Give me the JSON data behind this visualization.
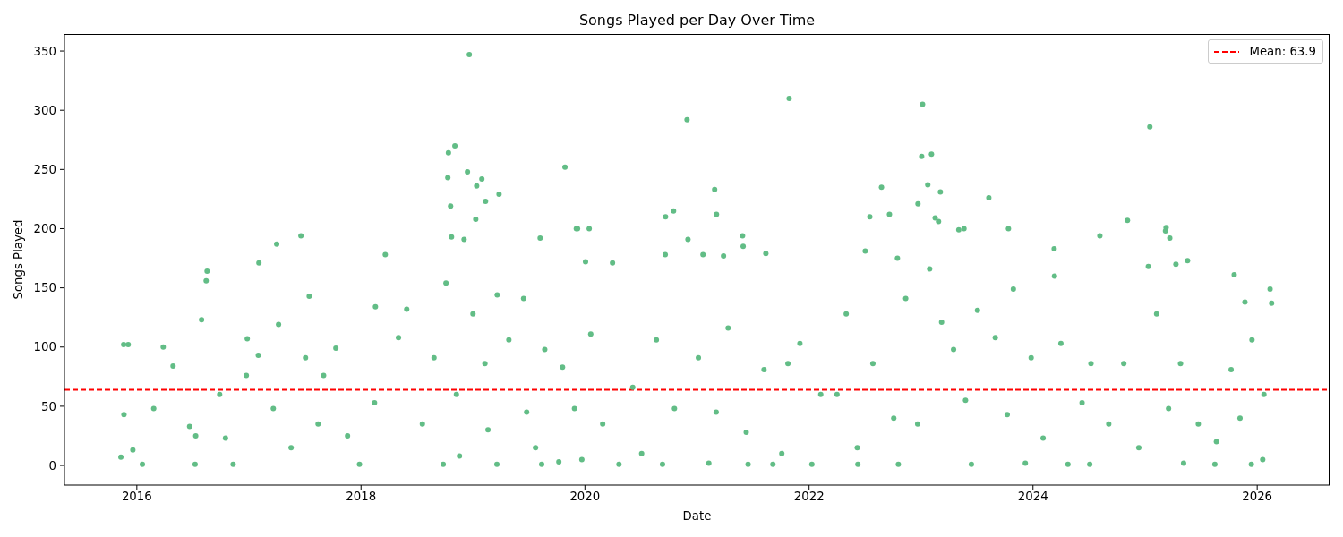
{
  "chart_data": {
    "type": "scatter",
    "title": "Songs Played per Day Over Time",
    "xlabel": "Date",
    "ylabel": "Songs Played",
    "x": [
      "2015-11-10",
      "2015-11-19",
      "2015-11-20",
      "2015-12-04",
      "2015-12-19",
      "2016-01-19",
      "2016-02-25",
      "2016-03-27",
      "2016-04-28",
      "2016-06-21",
      "2016-07-09",
      "2016-07-11",
      "2016-07-30",
      "2016-08-14",
      "2016-08-17",
      "2016-09-27",
      "2016-10-16",
      "2016-11-10",
      "2016-12-23",
      "2016-12-26",
      "2017-01-31",
      "2017-02-02",
      "2017-03-21",
      "2017-04-01",
      "2017-04-07",
      "2017-05-18",
      "2017-06-19",
      "2017-07-04",
      "2017-07-16",
      "2017-08-14",
      "2017-09-01",
      "2017-10-11",
      "2017-11-18",
      "2017-12-27",
      "2018-02-14",
      "2018-02-17",
      "2018-03-21",
      "2018-05-03",
      "2018-05-30",
      "2018-07-20",
      "2018-08-27",
      "2018-09-26",
      "2018-10-05",
      "2018-10-11",
      "2018-10-13",
      "2018-10-20",
      "2018-10-23",
      "2018-11-03",
      "2018-11-08",
      "2018-11-18",
      "2018-12-03",
      "2018-12-14",
      "2018-12-20",
      "2019-01-01",
      "2019-01-10",
      "2019-01-13",
      "2019-01-30",
      "2019-02-09",
      "2019-02-11",
      "2019-02-19",
      "2019-03-20",
      "2019-03-21",
      "2019-03-27",
      "2019-04-28",
      "2019-06-15",
      "2019-06-25",
      "2019-07-24",
      "2019-08-08",
      "2019-08-13",
      "2019-08-23",
      "2019-10-08",
      "2019-10-20",
      "2019-10-28",
      "2019-11-28",
      "2019-12-04",
      "2019-12-08",
      "2019-12-22",
      "2020-01-03",
      "2020-01-15",
      "2020-01-20",
      "2020-02-28",
      "2020-03-31",
      "2020-04-21",
      "2020-06-05",
      "2020-07-04",
      "2020-08-21",
      "2020-09-10",
      "2020-09-19",
      "2020-09-20",
      "2020-10-16",
      "2020-10-19",
      "2020-11-29",
      "2020-12-02",
      "2021-01-05",
      "2021-01-20",
      "2021-02-08",
      "2021-02-27",
      "2021-03-04",
      "2021-03-05",
      "2021-03-28",
      "2021-04-12",
      "2021-05-29",
      "2021-05-31",
      "2021-06-10",
      "2021-06-16",
      "2021-08-07",
      "2021-08-13",
      "2021-09-05",
      "2021-10-04",
      "2021-10-24",
      "2021-10-28",
      "2021-12-02",
      "2022-01-10",
      "2022-02-08",
      "2022-04-02",
      "2022-05-02",
      "2022-06-07",
      "2022-06-09",
      "2022-07-03",
      "2022-07-18",
      "2022-07-28",
      "2022-08-25",
      "2022-09-20",
      "2022-10-04",
      "2022-10-16",
      "2022-10-19",
      "2022-11-12",
      "2022-12-21",
      "2022-12-22",
      "2023-01-03",
      "2023-01-06",
      "2023-01-23",
      "2023-01-29",
      "2023-02-04",
      "2023-02-16",
      "2023-02-27",
      "2023-03-05",
      "2023-03-09",
      "2023-04-17",
      "2023-05-04",
      "2023-05-21",
      "2023-05-26",
      "2023-06-14",
      "2023-07-04",
      "2023-08-10",
      "2023-08-31",
      "2023-10-09",
      "2023-10-13",
      "2023-10-29",
      "2023-12-07",
      "2023-12-26",
      "2024-02-03",
      "2024-03-10",
      "2024-03-11",
      "2024-04-01",
      "2024-04-24",
      "2024-06-09",
      "2024-07-04",
      "2024-07-08",
      "2024-08-06",
      "2024-09-04",
      "2024-10-23",
      "2024-11-04",
      "2024-12-11",
      "2025-01-11",
      "2025-01-16",
      "2025-02-07",
      "2025-03-08",
      "2025-03-10",
      "2025-03-18",
      "2025-03-22",
      "2025-04-11",
      "2025-04-26",
      "2025-05-06",
      "2025-05-19",
      "2025-06-23",
      "2025-08-16",
      "2025-08-21",
      "2025-10-08",
      "2025-10-18",
      "2025-11-06",
      "2025-11-22",
      "2025-12-13",
      "2025-12-15",
      "2026-01-19",
      "2026-01-23",
      "2026-02-12",
      "2026-02-17"
    ],
    "values": [
      7,
      102,
      43,
      102,
      13,
      1,
      48,
      100,
      84,
      33,
      1,
      25,
      123,
      156,
      164,
      60,
      23,
      1,
      76,
      107,
      93,
      171,
      48,
      187,
      119,
      15,
      194,
      91,
      143,
      35,
      76,
      99,
      25,
      1,
      53,
      134,
      178,
      108,
      132,
      35,
      91,
      1,
      154,
      243,
      264,
      219,
      193,
      270,
      60,
      8,
      191,
      248,
      347,
      128,
      208,
      236,
      242,
      86,
      223,
      30,
      1,
      144,
      229,
      106,
      141,
      45,
      15,
      192,
      1,
      98,
      3,
      83,
      252,
      48,
      200,
      200,
      5,
      172,
      200,
      111,
      35,
      171,
      1,
      66,
      10,
      106,
      1,
      178,
      210,
      215,
      48,
      292,
      191,
      91,
      178,
      2,
      233,
      45,
      212,
      177,
      116,
      194,
      185,
      28,
      1,
      81,
      179,
      1,
      10,
      86,
      310,
      103,
      1,
      60,
      60,
      128,
      15,
      1,
      181,
      210,
      86,
      235,
      212,
      40,
      175,
      1,
      141,
      35,
      221,
      261,
      305,
      237,
      166,
      263,
      209,
      206,
      231,
      121,
      98,
      199,
      200,
      55,
      1,
      131,
      226,
      108,
      43,
      200,
      149,
      2,
      91,
      23,
      183,
      160,
      103,
      1,
      53,
      1,
      86,
      194,
      35,
      86,
      207,
      15,
      168,
      286,
      128,
      198,
      201,
      48,
      192,
      170,
      86,
      2,
      173,
      35,
      1,
      20,
      81,
      161,
      40,
      138,
      1,
      106,
      5,
      60,
      149,
      137
    ],
    "color": "#62bd86",
    "marker": "circle",
    "xlim": [
      "2015-05-10",
      "2026-08-25"
    ],
    "xticks": [
      {
        "value": "2016-01-01",
        "label": "2016"
      },
      {
        "value": "2018-01-01",
        "label": "2018"
      },
      {
        "value": "2020-01-01",
        "label": "2020"
      },
      {
        "value": "2022-01-01",
        "label": "2022"
      },
      {
        "value": "2024-01-01",
        "label": "2024"
      },
      {
        "value": "2026-01-01",
        "label": "2026"
      }
    ],
    "ylim": [
      -16.6,
      364.4
    ],
    "yticks": [
      0,
      50,
      100,
      150,
      200,
      250,
      300,
      350
    ],
    "ref_lines": [
      {
        "axis": "y",
        "value": 63.9,
        "label": "Mean: 63.9",
        "color": "#ff0000",
        "line_style": "dashed"
      }
    ],
    "legend": "top right"
  }
}
